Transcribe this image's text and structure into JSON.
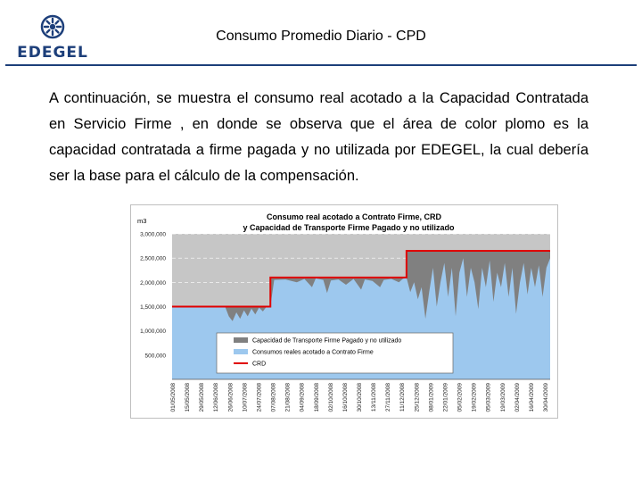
{
  "brand": {
    "name": "EDEGEL",
    "colors": {
      "primary": "#1d3f7a"
    }
  },
  "header": {
    "title": "Consumo Promedio Diario - CPD"
  },
  "body": {
    "paragraph": "A continuación, se muestra el consumo real acotado a la Capacidad Contratada en Servicio Firme , en donde se observa que el área de color plomo es la capacidad contratada a firme pagada y no utilizada por EDEGEL, la cual debería ser la base para el cálculo de la compensación."
  },
  "chart_data": {
    "type": "area",
    "title": "Consumo real acotado a Contrato Firme, CRD",
    "subtitle": "y Capacidad de Transporte Firme Pagado y no utilizado",
    "ylabel": "m3",
    "ylim": [
      0,
      3000000
    ],
    "yticks": [
      {
        "value": 500000,
        "label": "500,000"
      },
      {
        "value": 1000000,
        "label": "1,000,000"
      },
      {
        "value": 1500000,
        "label": "1,500,000"
      },
      {
        "value": 2000000,
        "label": "2,000,000"
      },
      {
        "value": 2500000,
        "label": "2,500,000"
      },
      {
        "value": 3000000,
        "label": "3,000,000"
      }
    ],
    "x_range": [
      0,
      100
    ],
    "x_ticks": [
      "01/05/2008",
      "15/05/2008",
      "29/05/2008",
      "12/06/2008",
      "26/06/2008",
      "10/07/2008",
      "24/07/2008",
      "07/08/2008",
      "21/08/2008",
      "04/09/2008",
      "18/09/2008",
      "02/10/2008",
      "16/10/2008",
      "30/10/2008",
      "13/11/2008",
      "27/11/2008",
      "11/12/2008",
      "25/12/2008",
      "08/01/2009",
      "22/01/2009",
      "05/02/2009",
      "19/02/2009",
      "05/03/2009",
      "19/03/2009",
      "02/04/2009",
      "16/04/2009",
      "30/04/2009"
    ],
    "crd_steps": [
      {
        "x": [
          0,
          26
        ],
        "value": 1500000
      },
      {
        "x": [
          26,
          62
        ],
        "value": 2100000
      },
      {
        "x": [
          62,
          100
        ],
        "value": 2650000
      }
    ],
    "consumption_profile": [
      [
        0,
        1500000
      ],
      [
        14,
        1500000
      ],
      [
        15,
        1300000
      ],
      [
        16,
        1200000
      ],
      [
        17,
        1380000
      ],
      [
        18,
        1250000
      ],
      [
        19,
        1420000
      ],
      [
        20,
        1300000
      ],
      [
        21,
        1460000
      ],
      [
        22,
        1340000
      ],
      [
        23,
        1480000
      ],
      [
        24,
        1400000
      ],
      [
        25,
        1500000
      ],
      [
        26,
        1500000
      ],
      [
        27,
        2050000
      ],
      [
        30,
        2060000
      ],
      [
        33,
        2000000
      ],
      [
        35,
        2070000
      ],
      [
        37,
        1900000
      ],
      [
        38,
        2080000
      ],
      [
        40,
        2050000
      ],
      [
        41,
        1780000
      ],
      [
        42,
        2040000
      ],
      [
        44,
        2060000
      ],
      [
        46,
        1950000
      ],
      [
        48,
        2070000
      ],
      [
        50,
        1850000
      ],
      [
        51,
        2060000
      ],
      [
        53,
        2030000
      ],
      [
        55,
        1900000
      ],
      [
        56,
        2050000
      ],
      [
        58,
        2070000
      ],
      [
        60,
        2000000
      ],
      [
        61,
        2070000
      ],
      [
        62,
        2100000
      ],
      [
        63,
        1800000
      ],
      [
        64,
        2000000
      ],
      [
        65,
        1650000
      ],
      [
        66,
        1900000
      ],
      [
        67,
        1250000
      ],
      [
        68,
        1800000
      ],
      [
        69,
        2300000
      ],
      [
        70,
        1500000
      ],
      [
        71,
        2000000
      ],
      [
        72,
        2400000
      ],
      [
        73,
        1700000
      ],
      [
        74,
        2300000
      ],
      [
        75,
        1300000
      ],
      [
        76,
        2200000
      ],
      [
        77,
        2500000
      ],
      [
        78,
        1700000
      ],
      [
        79,
        2300000
      ],
      [
        80,
        2000000
      ],
      [
        81,
        1450000
      ],
      [
        82,
        2300000
      ],
      [
        83,
        1900000
      ],
      [
        84,
        2450000
      ],
      [
        85,
        1600000
      ],
      [
        86,
        2200000
      ],
      [
        87,
        1900000
      ],
      [
        88,
        2400000
      ],
      [
        89,
        1700000
      ],
      [
        90,
        2300000
      ],
      [
        91,
        1350000
      ],
      [
        92,
        2000000
      ],
      [
        93,
        2400000
      ],
      [
        94,
        1750000
      ],
      [
        95,
        2300000
      ],
      [
        96,
        1900000
      ],
      [
        97,
        2350000
      ],
      [
        98,
        1700000
      ],
      [
        99,
        2300000
      ],
      [
        100,
        2500000
      ]
    ],
    "series": [
      {
        "name": "Capacidad de Transporte Firme Pagado y no utilizado",
        "color": "#808080"
      },
      {
        "name": "Consumos reales acotado a Contrato Firme",
        "color": "#9dc8ee"
      },
      {
        "name": "CRD",
        "color": "#e00000"
      }
    ],
    "grid": true,
    "legend_position": "bottom-center",
    "background": "#c6c6c6"
  }
}
